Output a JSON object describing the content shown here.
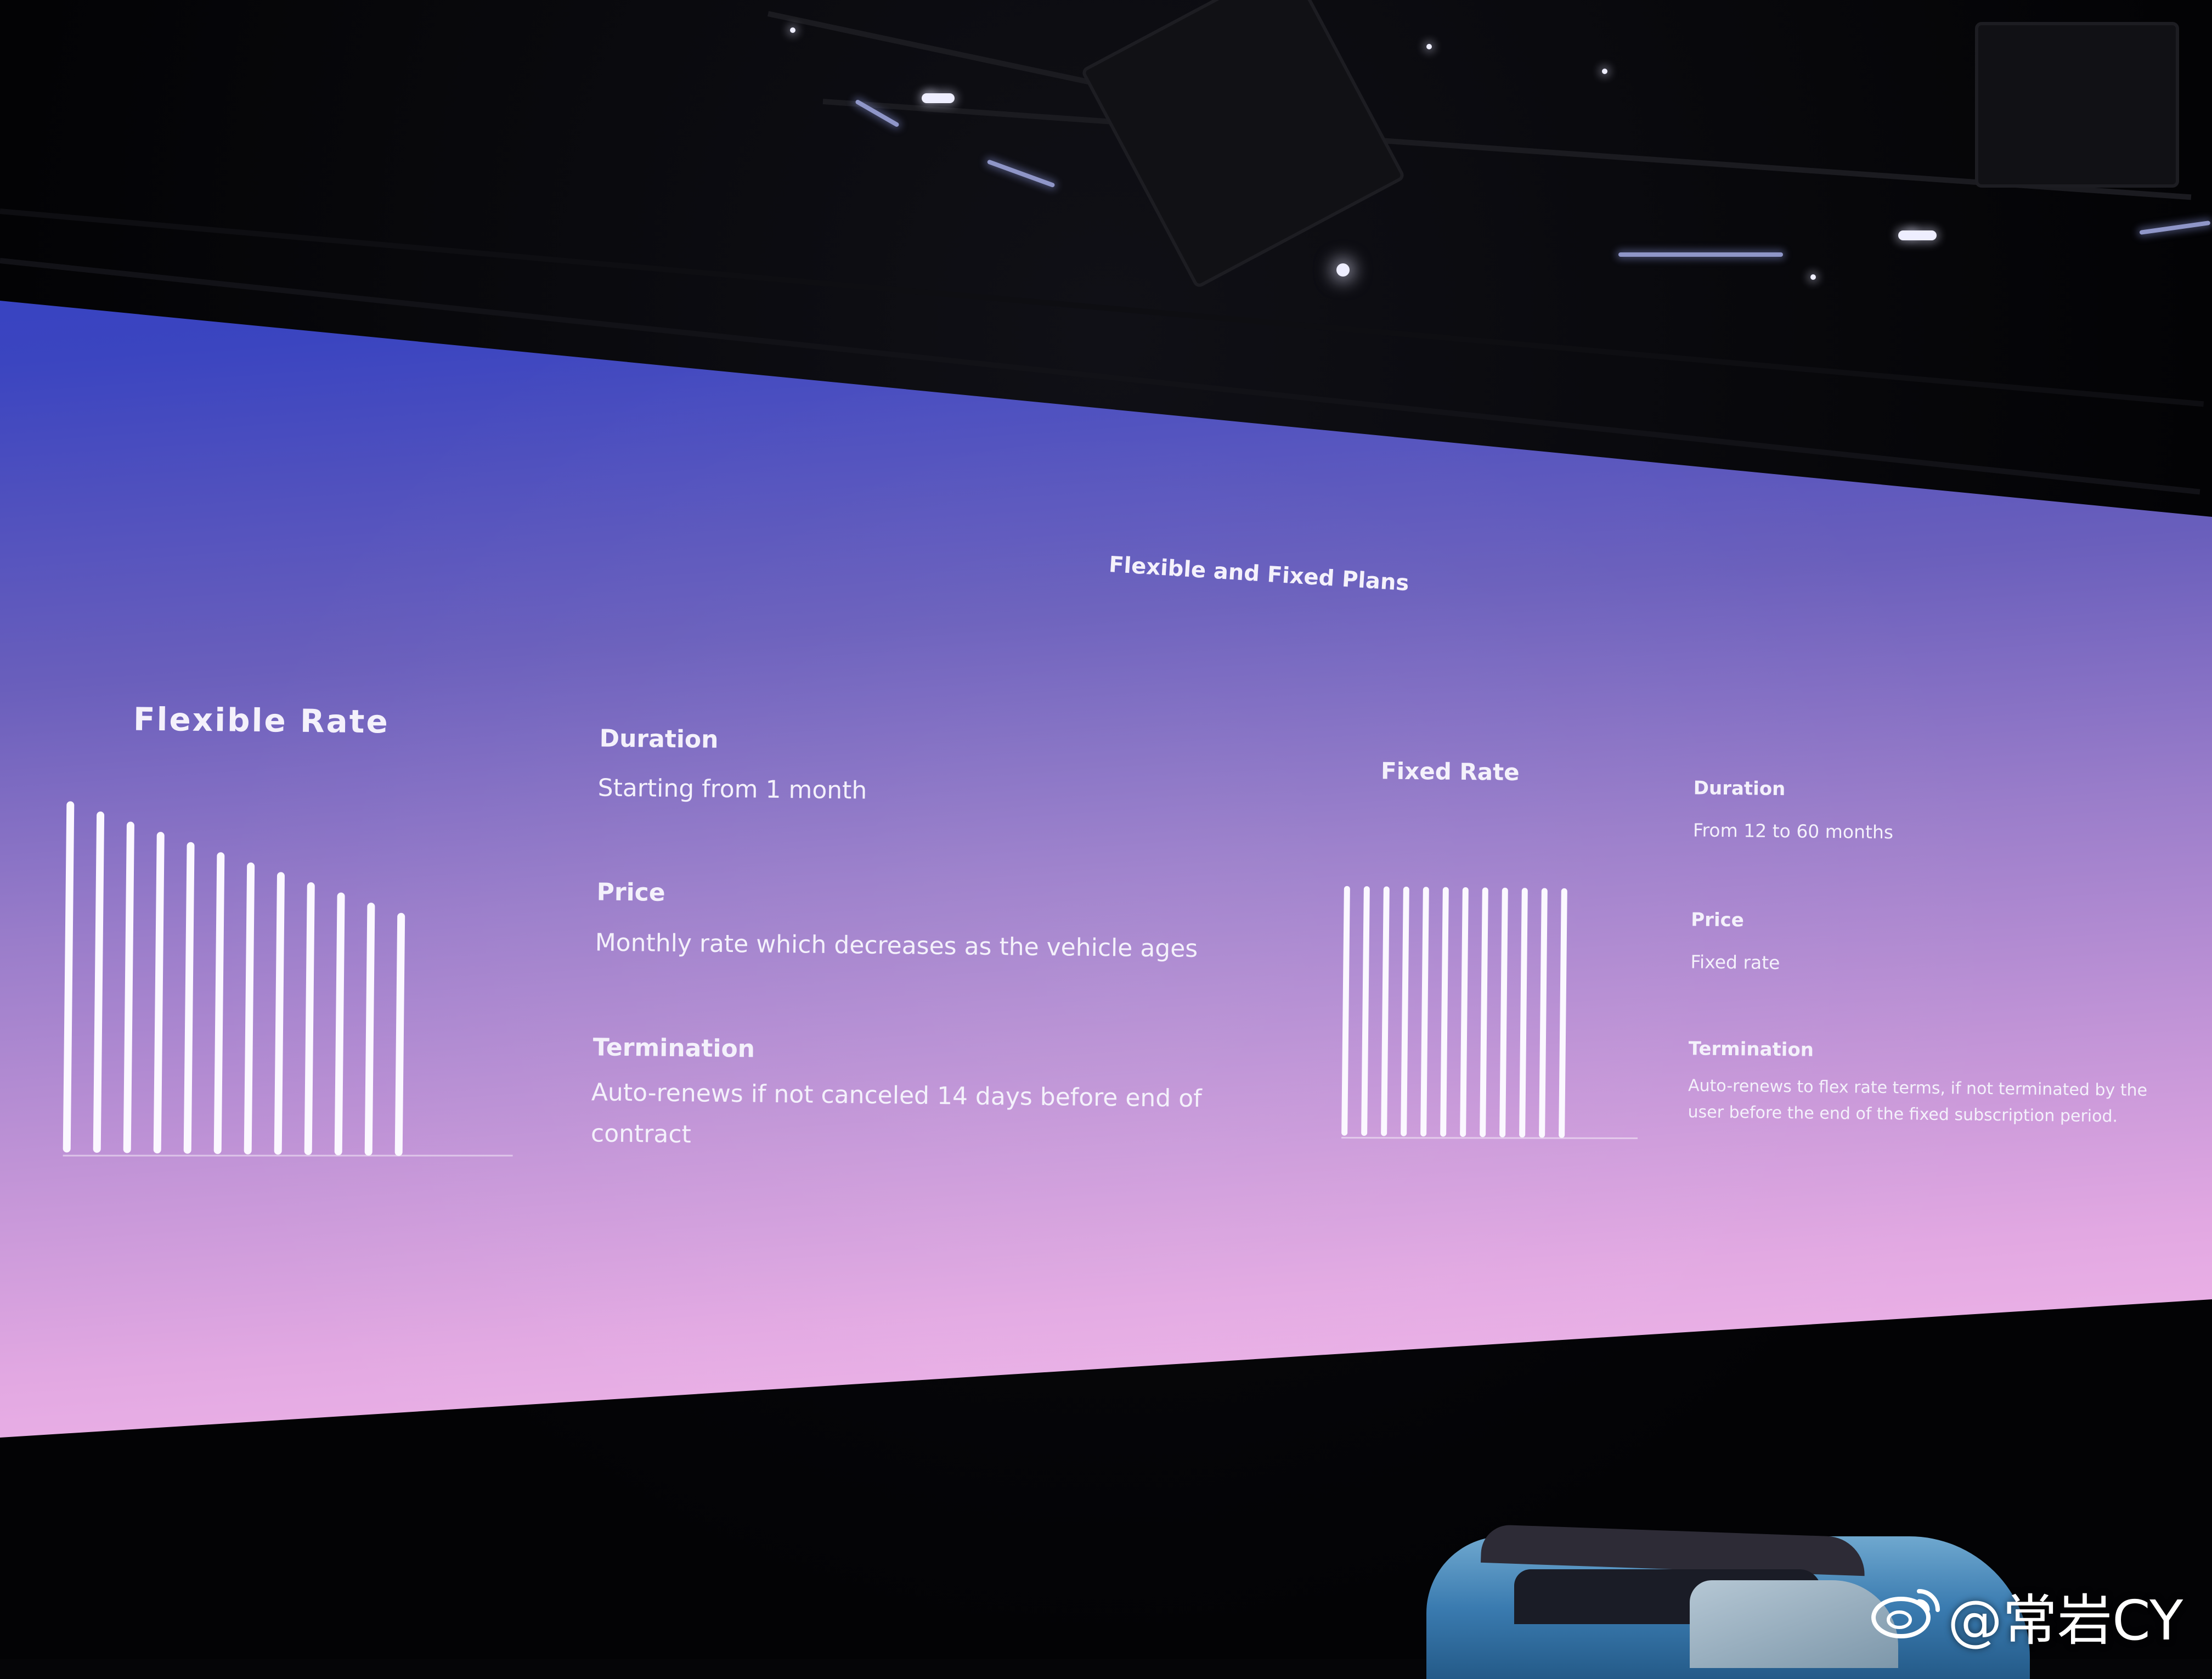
{
  "slide": {
    "title": "Flexible and Fixed Plans",
    "flexible": {
      "heading": "Flexible Rate",
      "bars_relative_heights": [
        1.0,
        0.972,
        0.944,
        0.916,
        0.888,
        0.86,
        0.832,
        0.804,
        0.776,
        0.748,
        0.72,
        0.692
      ],
      "duration_label": "Duration",
      "duration_value": "Starting from 1 month",
      "price_label": "Price",
      "price_value": "Monthly rate which decreases as the vehicle ages",
      "termination_label": "Termination",
      "termination_line1": "Auto-renews if not canceled 14 days before end of",
      "termination_line2": "contract"
    },
    "fixed": {
      "heading": "Fixed Rate",
      "bars_relative_heights": [
        1,
        1,
        1,
        1,
        1,
        1,
        1,
        1,
        1,
        1,
        1,
        1
      ],
      "duration_label": "Duration",
      "duration_value": "From 12 to 60 months",
      "price_label": "Price",
      "price_value": "Fixed rate",
      "termination_label": "Termination",
      "termination_line1": "Auto-renews to flex rate terms, if not terminated by the",
      "termination_line2": "user before the end of the fixed subscription period."
    }
  },
  "watermark": {
    "text": "@常岩CY",
    "icon": "weibo-logo-icon"
  },
  "colors": {
    "screen_top": "#2c3cc8",
    "screen_bottom": "#efb4e8",
    "text": "#f4f1fb"
  }
}
